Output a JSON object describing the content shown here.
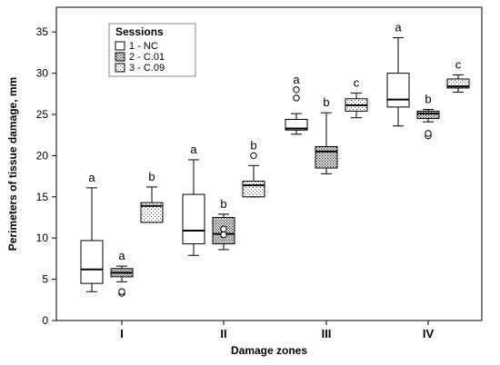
{
  "chart_data": {
    "type": "box",
    "categories": [
      "I",
      "II",
      "III",
      "IV"
    ],
    "xlabel": "Damage zones",
    "ylabel": "Perimeters of tissue damage, mm",
    "ylim": [
      0,
      38
    ],
    "yticks": [
      0,
      5,
      10,
      15,
      20,
      25,
      30,
      35
    ],
    "grid": false,
    "legend": {
      "title": "Sessions",
      "placement": "top-left",
      "entries": [
        {
          "label": "1 - NC",
          "pattern": "plain"
        },
        {
          "label": "2 - C.01",
          "pattern": "dense"
        },
        {
          "label": "3 - C.09",
          "pattern": "sparse"
        }
      ]
    },
    "series": [
      {
        "label": "1 - NC",
        "pattern": "plain",
        "boxes": [
          {
            "category": "I",
            "whisker_low": 3.5,
            "q1": 4.5,
            "median": 6.2,
            "q3": 9.7,
            "whisker_high": 16.1,
            "outliers": [],
            "sig": "a"
          },
          {
            "category": "II",
            "whisker_low": 7.9,
            "q1": 9.3,
            "median": 10.9,
            "q3": 15.3,
            "whisker_high": 19.5,
            "outliers": [],
            "sig": "a"
          },
          {
            "category": "III",
            "whisker_low": 22.6,
            "q1": 23.1,
            "median": 23.3,
            "q3": 24.4,
            "whisker_high": 25.1,
            "outliers": [
              27.0,
              28.0
            ],
            "sig": "a"
          },
          {
            "category": "IV",
            "whisker_low": 23.6,
            "q1": 25.9,
            "median": 26.8,
            "q3": 30.0,
            "whisker_high": 34.3,
            "outliers": [],
            "sig": "a"
          }
        ]
      },
      {
        "label": "2 - C.01",
        "pattern": "dense",
        "boxes": [
          {
            "category": "I",
            "whisker_low": 4.7,
            "q1": 5.3,
            "median": 5.8,
            "q3": 6.3,
            "whisker_high": 6.6,
            "outliers": [
              3.3,
              3.5
            ],
            "sig": "a"
          },
          {
            "category": "II",
            "whisker_low": 8.6,
            "q1": 9.3,
            "median": 10.5,
            "q3": 12.5,
            "whisker_high": 12.9,
            "outliers": [
              10.4,
              11.1
            ],
            "sig": "b"
          },
          {
            "category": "III",
            "whisker_low": 17.8,
            "q1": 18.5,
            "median": 20.5,
            "q3": 21.1,
            "whisker_high": 25.2,
            "outliers": [],
            "sig": "b"
          },
          {
            "category": "IV",
            "whisker_low": 24.1,
            "q1": 24.5,
            "median": 25.1,
            "q3": 25.4,
            "whisker_high": 25.6,
            "outliers": [
              22.4,
              22.7
            ],
            "sig": "b"
          }
        ]
      },
      {
        "label": "3 - C.09",
        "pattern": "sparse",
        "boxes": [
          {
            "category": "I",
            "whisker_low": 11.9,
            "q1": 11.9,
            "median": 13.9,
            "q3": 14.3,
            "whisker_high": 16.2,
            "outliers": [],
            "sig": "b"
          },
          {
            "category": "II",
            "whisker_low": 15.0,
            "q1": 15.0,
            "median": 16.4,
            "q3": 16.9,
            "whisker_high": 18.8,
            "outliers": [
              20.0
            ],
            "sig": "b"
          },
          {
            "category": "III",
            "whisker_low": 24.6,
            "q1": 25.4,
            "median": 26.1,
            "q3": 26.9,
            "whisker_high": 27.6,
            "outliers": [],
            "sig": "c"
          },
          {
            "category": "IV",
            "whisker_low": 27.7,
            "q1": 28.2,
            "median": 28.4,
            "q3": 29.3,
            "whisker_high": 29.8,
            "outliers": [],
            "sig": "c"
          }
        ]
      }
    ]
  }
}
